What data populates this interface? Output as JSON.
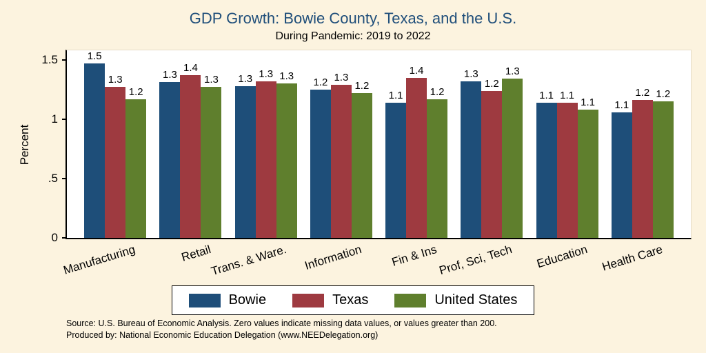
{
  "title": "GDP Growth: Bowie County, Texas, and the U.S.",
  "subtitle": "During Pandemic: 2019 to 2022",
  "chart_data": {
    "type": "bar",
    "title": "GDP Growth: Bowie County, Texas, and the U.S.",
    "subtitle": "During Pandemic: 2019 to 2022",
    "xlabel": "",
    "ylabel": "Percent",
    "ylim": [
      0,
      1.58
    ],
    "grid": false,
    "legend_position": "bottom",
    "y_ticks": [
      {
        "value": 0,
        "label": "0"
      },
      {
        "value": 0.5,
        "label": ".5"
      },
      {
        "value": 1,
        "label": "1"
      },
      {
        "value": 1.5,
        "label": "1.5"
      }
    ],
    "categories": [
      "Manufacturing",
      "Retail",
      "Trans. & Ware.",
      "Information",
      "Fin & Ins",
      "Prof, Sci, Tech",
      "Education",
      "Health Care"
    ],
    "series": [
      {
        "name": "Bowie",
        "color": "#1e4e79",
        "values": [
          1.47,
          1.31,
          1.28,
          1.25,
          1.14,
          1.32,
          1.14,
          1.06
        ],
        "labels": [
          "1.5",
          "1.3",
          "1.3",
          "1.2",
          "1.1",
          "1.3",
          "1.1",
          "1.1"
        ]
      },
      {
        "name": "Texas",
        "color": "#9e3a40",
        "values": [
          1.27,
          1.37,
          1.32,
          1.29,
          1.35,
          1.24,
          1.14,
          1.16
        ],
        "labels": [
          "1.3",
          "1.4",
          "1.3",
          "1.3",
          "1.4",
          "1.2",
          "1.1",
          "1.2"
        ]
      },
      {
        "name": "United States",
        "color": "#5f7f2d",
        "values": [
          1.17,
          1.27,
          1.3,
          1.22,
          1.17,
          1.34,
          1.08,
          1.15
        ],
        "labels": [
          "1.2",
          "1.3",
          "1.3",
          "1.2",
          "1.2",
          "1.3",
          "1.1",
          "1.2"
        ]
      }
    ]
  },
  "footnotes": {
    "source": "Source: U.S. Bureau of Economic Analysis. Zero values indicate missing data values, or values greater than 200.",
    "produced_by": "Produced by: National Economic Education Delegation (www.NEEDelegation.org)"
  }
}
